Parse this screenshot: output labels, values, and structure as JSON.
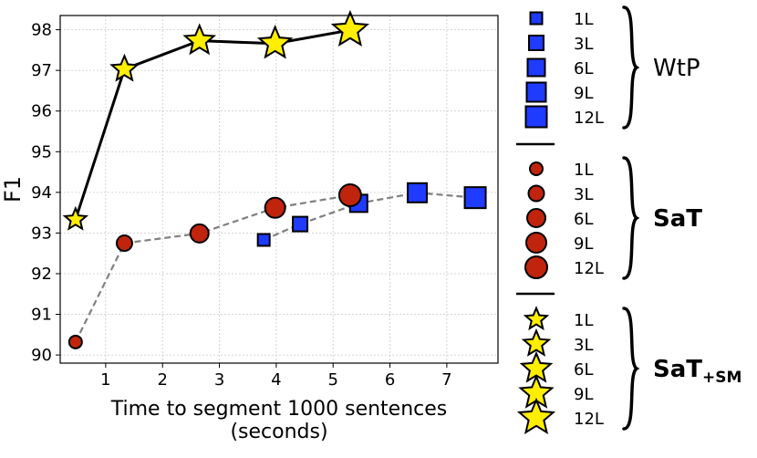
{
  "chart_data": {
    "type": "scatter",
    "xlabel_lines": [
      "Time to segment 1000 sentences",
      "(seconds)"
    ],
    "ylabel": "F1",
    "xlim": [
      0.2,
      7.9
    ],
    "ylim": [
      89.8,
      98.35
    ],
    "xticks": [
      1,
      2,
      3,
      4,
      5,
      6,
      7
    ],
    "yticks": [
      90,
      91,
      92,
      93,
      94,
      95,
      96,
      97,
      98
    ],
    "grid": true,
    "series": [
      {
        "name": "WtP",
        "marker": "square",
        "color": "#1f3bff",
        "line_style": "dashed",
        "line_color": "#808080",
        "points": [
          {
            "label": "1L",
            "x": 3.78,
            "y": 92.83
          },
          {
            "label": "3L",
            "x": 4.42,
            "y": 93.22
          },
          {
            "label": "6L",
            "x": 5.45,
            "y": 93.73
          },
          {
            "label": "9L",
            "x": 6.48,
            "y": 93.99
          },
          {
            "label": "12L",
            "x": 7.5,
            "y": 93.87
          }
        ]
      },
      {
        "name": "SaT",
        "marker": "circle",
        "color": "#c1240c",
        "line_style": "dashed",
        "line_color": "#808080",
        "points": [
          {
            "label": "1L",
            "x": 0.47,
            "y": 90.32
          },
          {
            "label": "3L",
            "x": 1.33,
            "y": 92.75
          },
          {
            "label": "6L",
            "x": 2.65,
            "y": 92.99
          },
          {
            "label": "9L",
            "x": 3.98,
            "y": 93.62
          },
          {
            "label": "12L",
            "x": 5.3,
            "y": 93.93
          }
        ]
      },
      {
        "name": "SaT+SM",
        "marker": "star",
        "color": "#ffee00",
        "line_style": "solid",
        "line_color": "#000000",
        "points": [
          {
            "label": "1L",
            "x": 0.47,
            "y": 93.33
          },
          {
            "label": "3L",
            "x": 1.33,
            "y": 97.03
          },
          {
            "label": "6L",
            "x": 2.65,
            "y": 97.73
          },
          {
            "label": "9L",
            "x": 3.98,
            "y": 97.66
          },
          {
            "label": "12L",
            "x": 5.3,
            "y": 97.99
          }
        ]
      }
    ],
    "legend": {
      "placement": "right",
      "groups": [
        {
          "name": "WtP",
          "bold": false,
          "marker": "square",
          "items": [
            "1L",
            "3L",
            "6L",
            "9L",
            "12L"
          ]
        },
        {
          "name": "SaT",
          "bold": true,
          "marker": "circle",
          "items": [
            "1L",
            "3L",
            "6L",
            "9L",
            "12L"
          ]
        },
        {
          "name_main": "SaT",
          "name_sub": "+SM",
          "bold": true,
          "marker": "star",
          "items": [
            "1L",
            "3L",
            "6L",
            "9L",
            "12L"
          ]
        }
      ]
    }
  }
}
